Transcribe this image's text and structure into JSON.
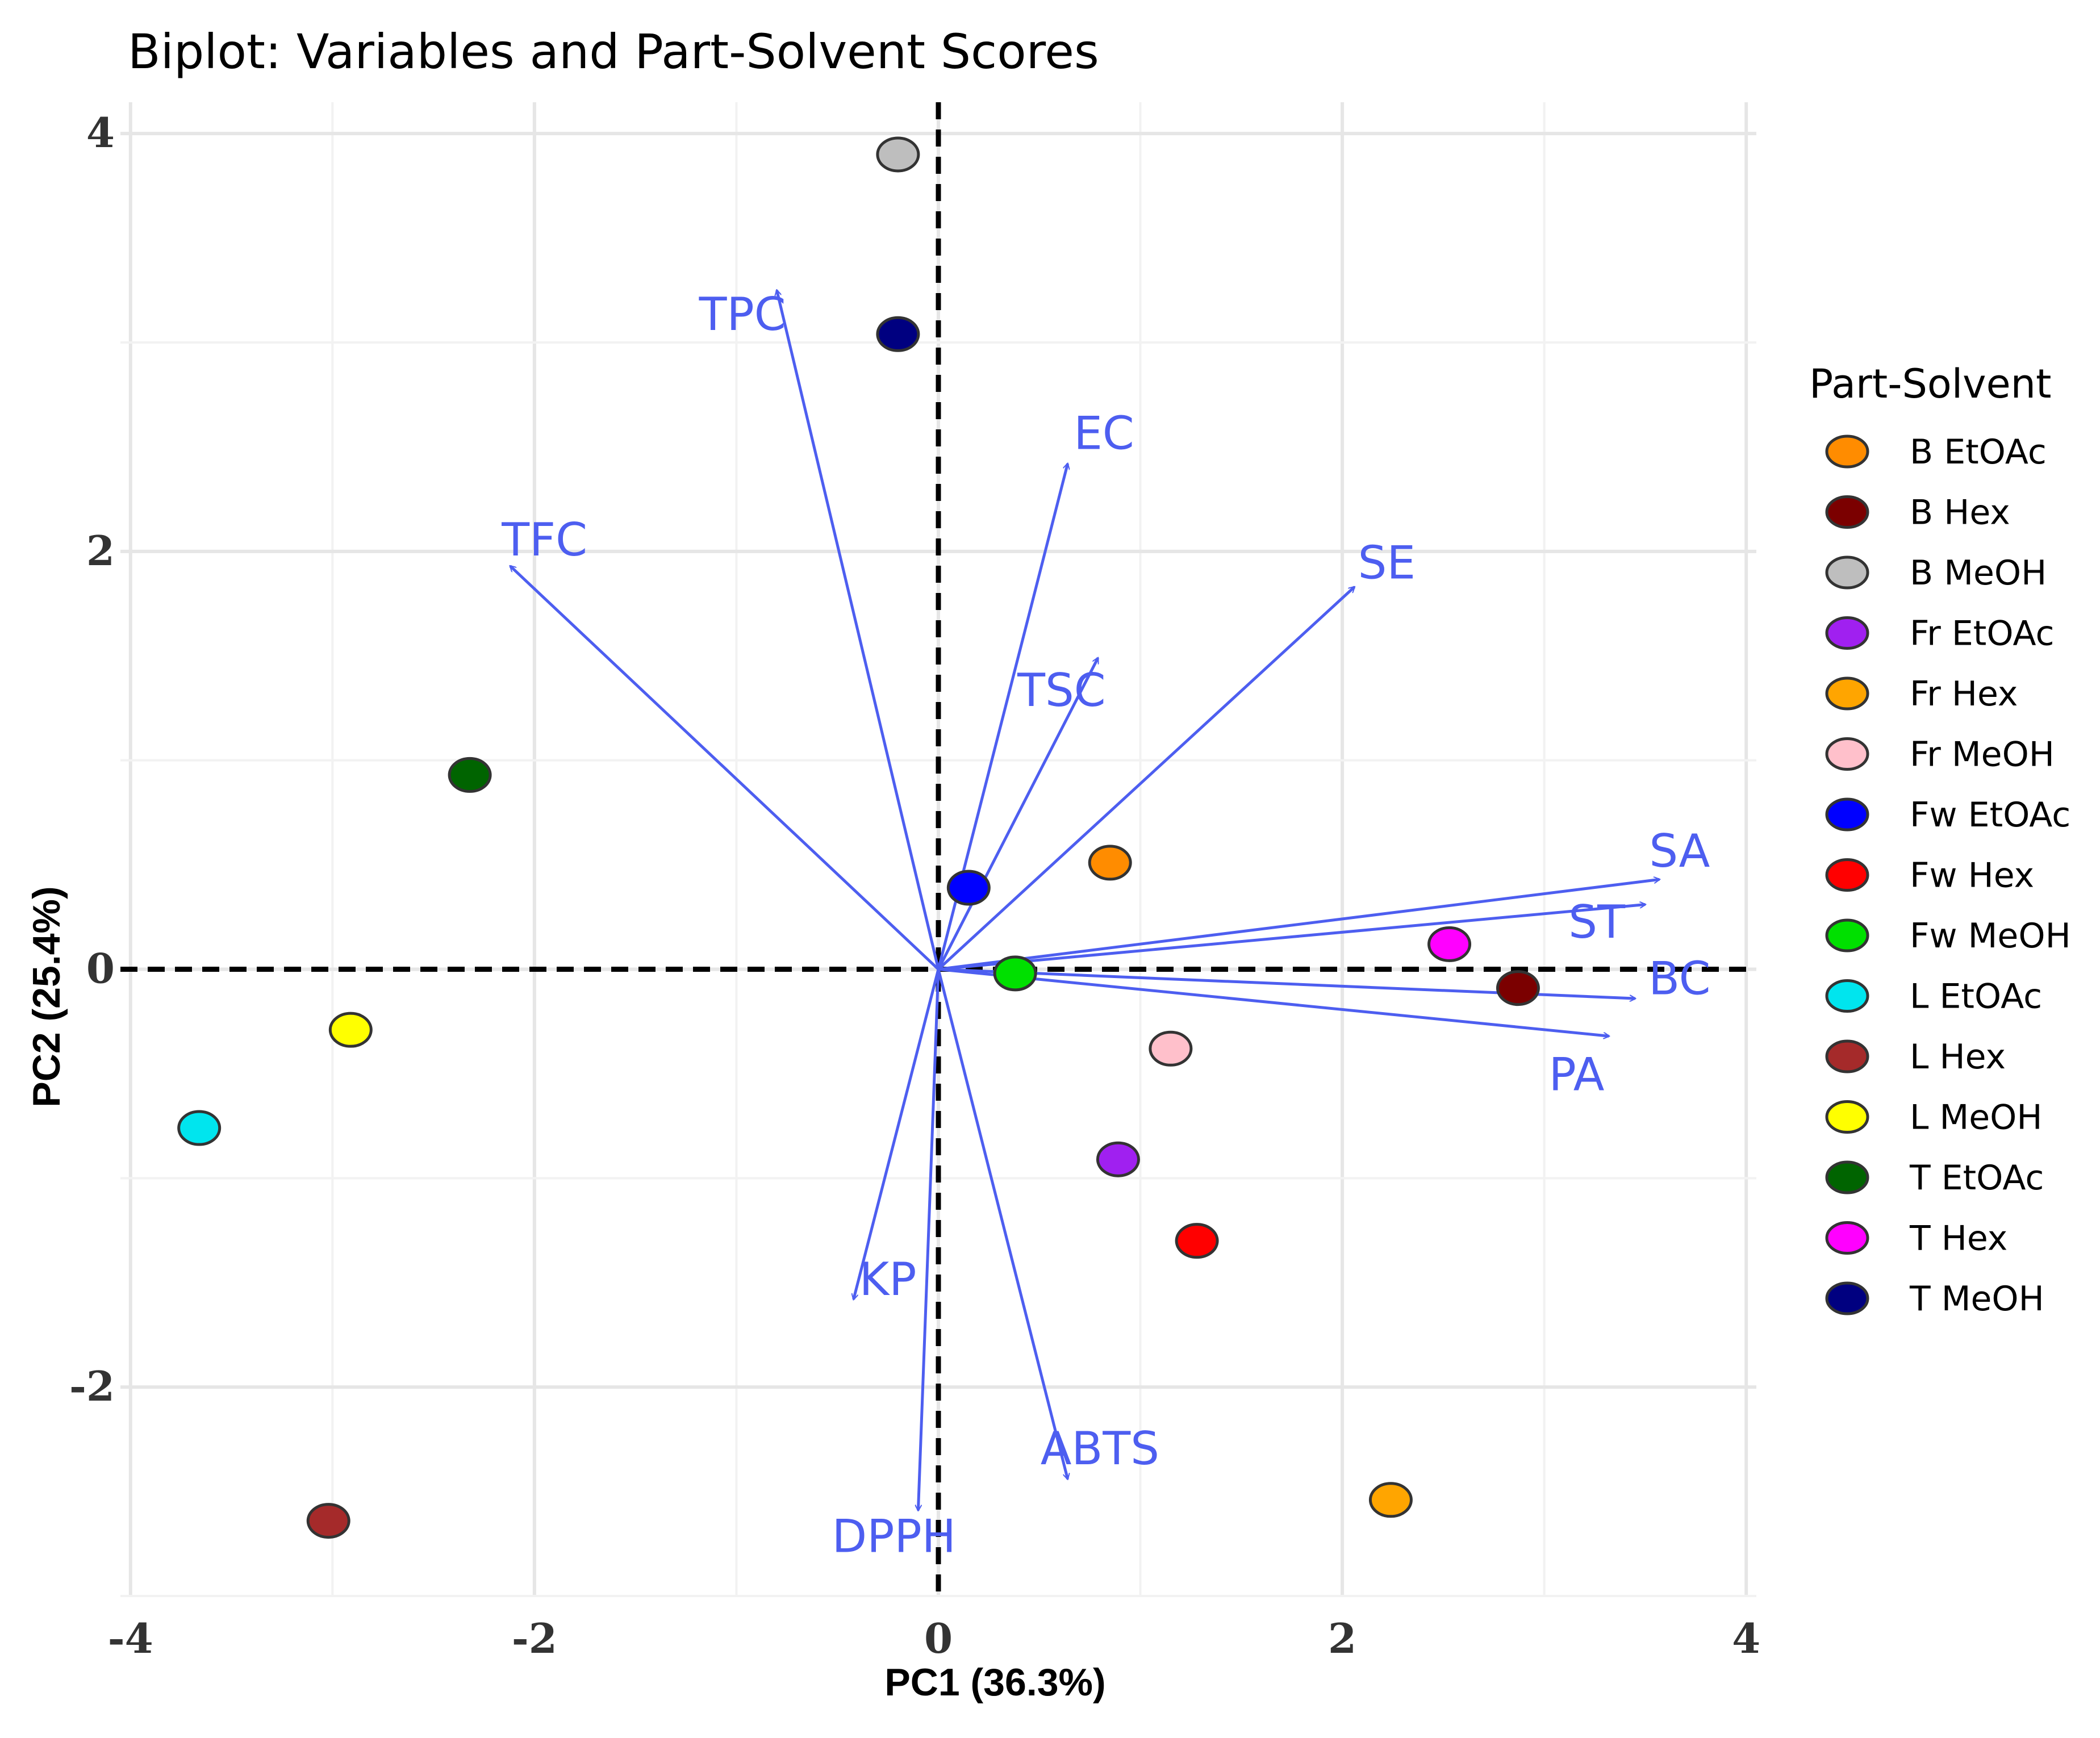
{
  "chart_data": {
    "type": "scatter",
    "subtype": "pca-biplot",
    "title": "Biplot: Variables and Part-Solvent Scores",
    "xlabel": "PC1 (36.3%)",
    "ylabel": "PC2 (25.4%)",
    "xlim": [
      -4.05,
      4.05
    ],
    "ylim": [
      -3.0,
      4.15
    ],
    "xticks": [
      -4,
      -2,
      0,
      2,
      4
    ],
    "yticks": [
      -2,
      0,
      2,
      4
    ],
    "grid": true,
    "reference_lines": {
      "x": 0,
      "y": 0,
      "style": "dashed"
    },
    "legend": {
      "title": "Part-Solvent",
      "position": "right",
      "entries": [
        {
          "name": "B EtOAc",
          "color": "#ff8c00"
        },
        {
          "name": "B Hex",
          "color": "#7b0000"
        },
        {
          "name": "B MeOH",
          "color": "#bebebe"
        },
        {
          "name": "Fr EtOAc",
          "color": "#a020f0"
        },
        {
          "name": "Fr Hex",
          "color": "#ffa500"
        },
        {
          "name": "Fr MeOH",
          "color": "#ffc0cb"
        },
        {
          "name": "Fw EtOAc",
          "color": "#0000ff"
        },
        {
          "name": "Fw Hex",
          "color": "#ff0000"
        },
        {
          "name": "Fw MeOH",
          "color": "#00e000"
        },
        {
          "name": "L EtOAc",
          "color": "#00e5ee"
        },
        {
          "name": "L Hex",
          "color": "#a52a2a"
        },
        {
          "name": "L MeOH",
          "color": "#ffff00"
        },
        {
          "name": "T EtOAc",
          "color": "#006400"
        },
        {
          "name": "T Hex",
          "color": "#ff00ff"
        },
        {
          "name": "T MeOH",
          "color": "#000080"
        }
      ]
    },
    "scores": [
      {
        "name": "B EtOAc",
        "x": 0.85,
        "y": 0.51
      },
      {
        "name": "B Hex",
        "x": 2.87,
        "y": -0.09
      },
      {
        "name": "B MeOH",
        "x": -0.2,
        "y": 3.9
      },
      {
        "name": "Fr EtOAc",
        "x": 0.89,
        "y": -0.91
      },
      {
        "name": "Fr Hex",
        "x": 2.24,
        "y": -2.54
      },
      {
        "name": "Fr MeOH",
        "x": 1.15,
        "y": -0.38
      },
      {
        "name": "Fw EtOAc",
        "x": 0.15,
        "y": 0.39
      },
      {
        "name": "Fw Hex",
        "x": 1.28,
        "y": -1.3
      },
      {
        "name": "Fw MeOH",
        "x": 0.38,
        "y": -0.02
      },
      {
        "name": "L EtOAc",
        "x": -3.66,
        "y": -0.76
      },
      {
        "name": "L Hex",
        "x": -3.02,
        "y": -2.64
      },
      {
        "name": "L MeOH",
        "x": -2.91,
        "y": -0.29
      },
      {
        "name": "T EtOAc",
        "x": -2.32,
        "y": 0.93
      },
      {
        "name": "T Hex",
        "x": 2.53,
        "y": 0.12
      },
      {
        "name": "T MeOH",
        "x": -0.2,
        "y": 3.04
      }
    ],
    "loadings": [
      {
        "name": "TPC",
        "x": -0.8,
        "y": 3.25,
        "label_x": -0.97,
        "label_y": 3.12
      },
      {
        "name": "EC",
        "x": 0.64,
        "y": 2.42,
        "label_x": 0.82,
        "label_y": 2.55
      },
      {
        "name": "TFC",
        "x": -2.12,
        "y": 1.93,
        "label_x": -1.95,
        "label_y": 2.04
      },
      {
        "name": "SE",
        "x": 2.06,
        "y": 1.83,
        "label_x": 2.22,
        "label_y": 1.93
      },
      {
        "name": "TSC",
        "x": 0.79,
        "y": 1.49,
        "label_x": 0.61,
        "label_y": 1.32
      },
      {
        "name": "SA",
        "x": 3.57,
        "y": 0.43,
        "label_x": 3.67,
        "label_y": 0.55
      },
      {
        "name": "ST",
        "x": 3.5,
        "y": 0.31,
        "label_x": 3.26,
        "label_y": 0.21
      },
      {
        "name": "BC",
        "x": 3.45,
        "y": -0.14,
        "label_x": 3.67,
        "label_y": -0.06
      },
      {
        "name": "PA",
        "x": 3.32,
        "y": -0.32,
        "label_x": 3.16,
        "label_y": -0.52
      },
      {
        "name": "KP",
        "x": -0.42,
        "y": -1.58,
        "label_x": -0.25,
        "label_y": -1.5
      },
      {
        "name": "ABTS",
        "x": 0.64,
        "y": -2.44,
        "label_x": 0.8,
        "label_y": -2.31
      },
      {
        "name": "DPPH",
        "x": -0.1,
        "y": -2.59,
        "label_x": -0.22,
        "label_y": -2.73
      }
    ]
  }
}
